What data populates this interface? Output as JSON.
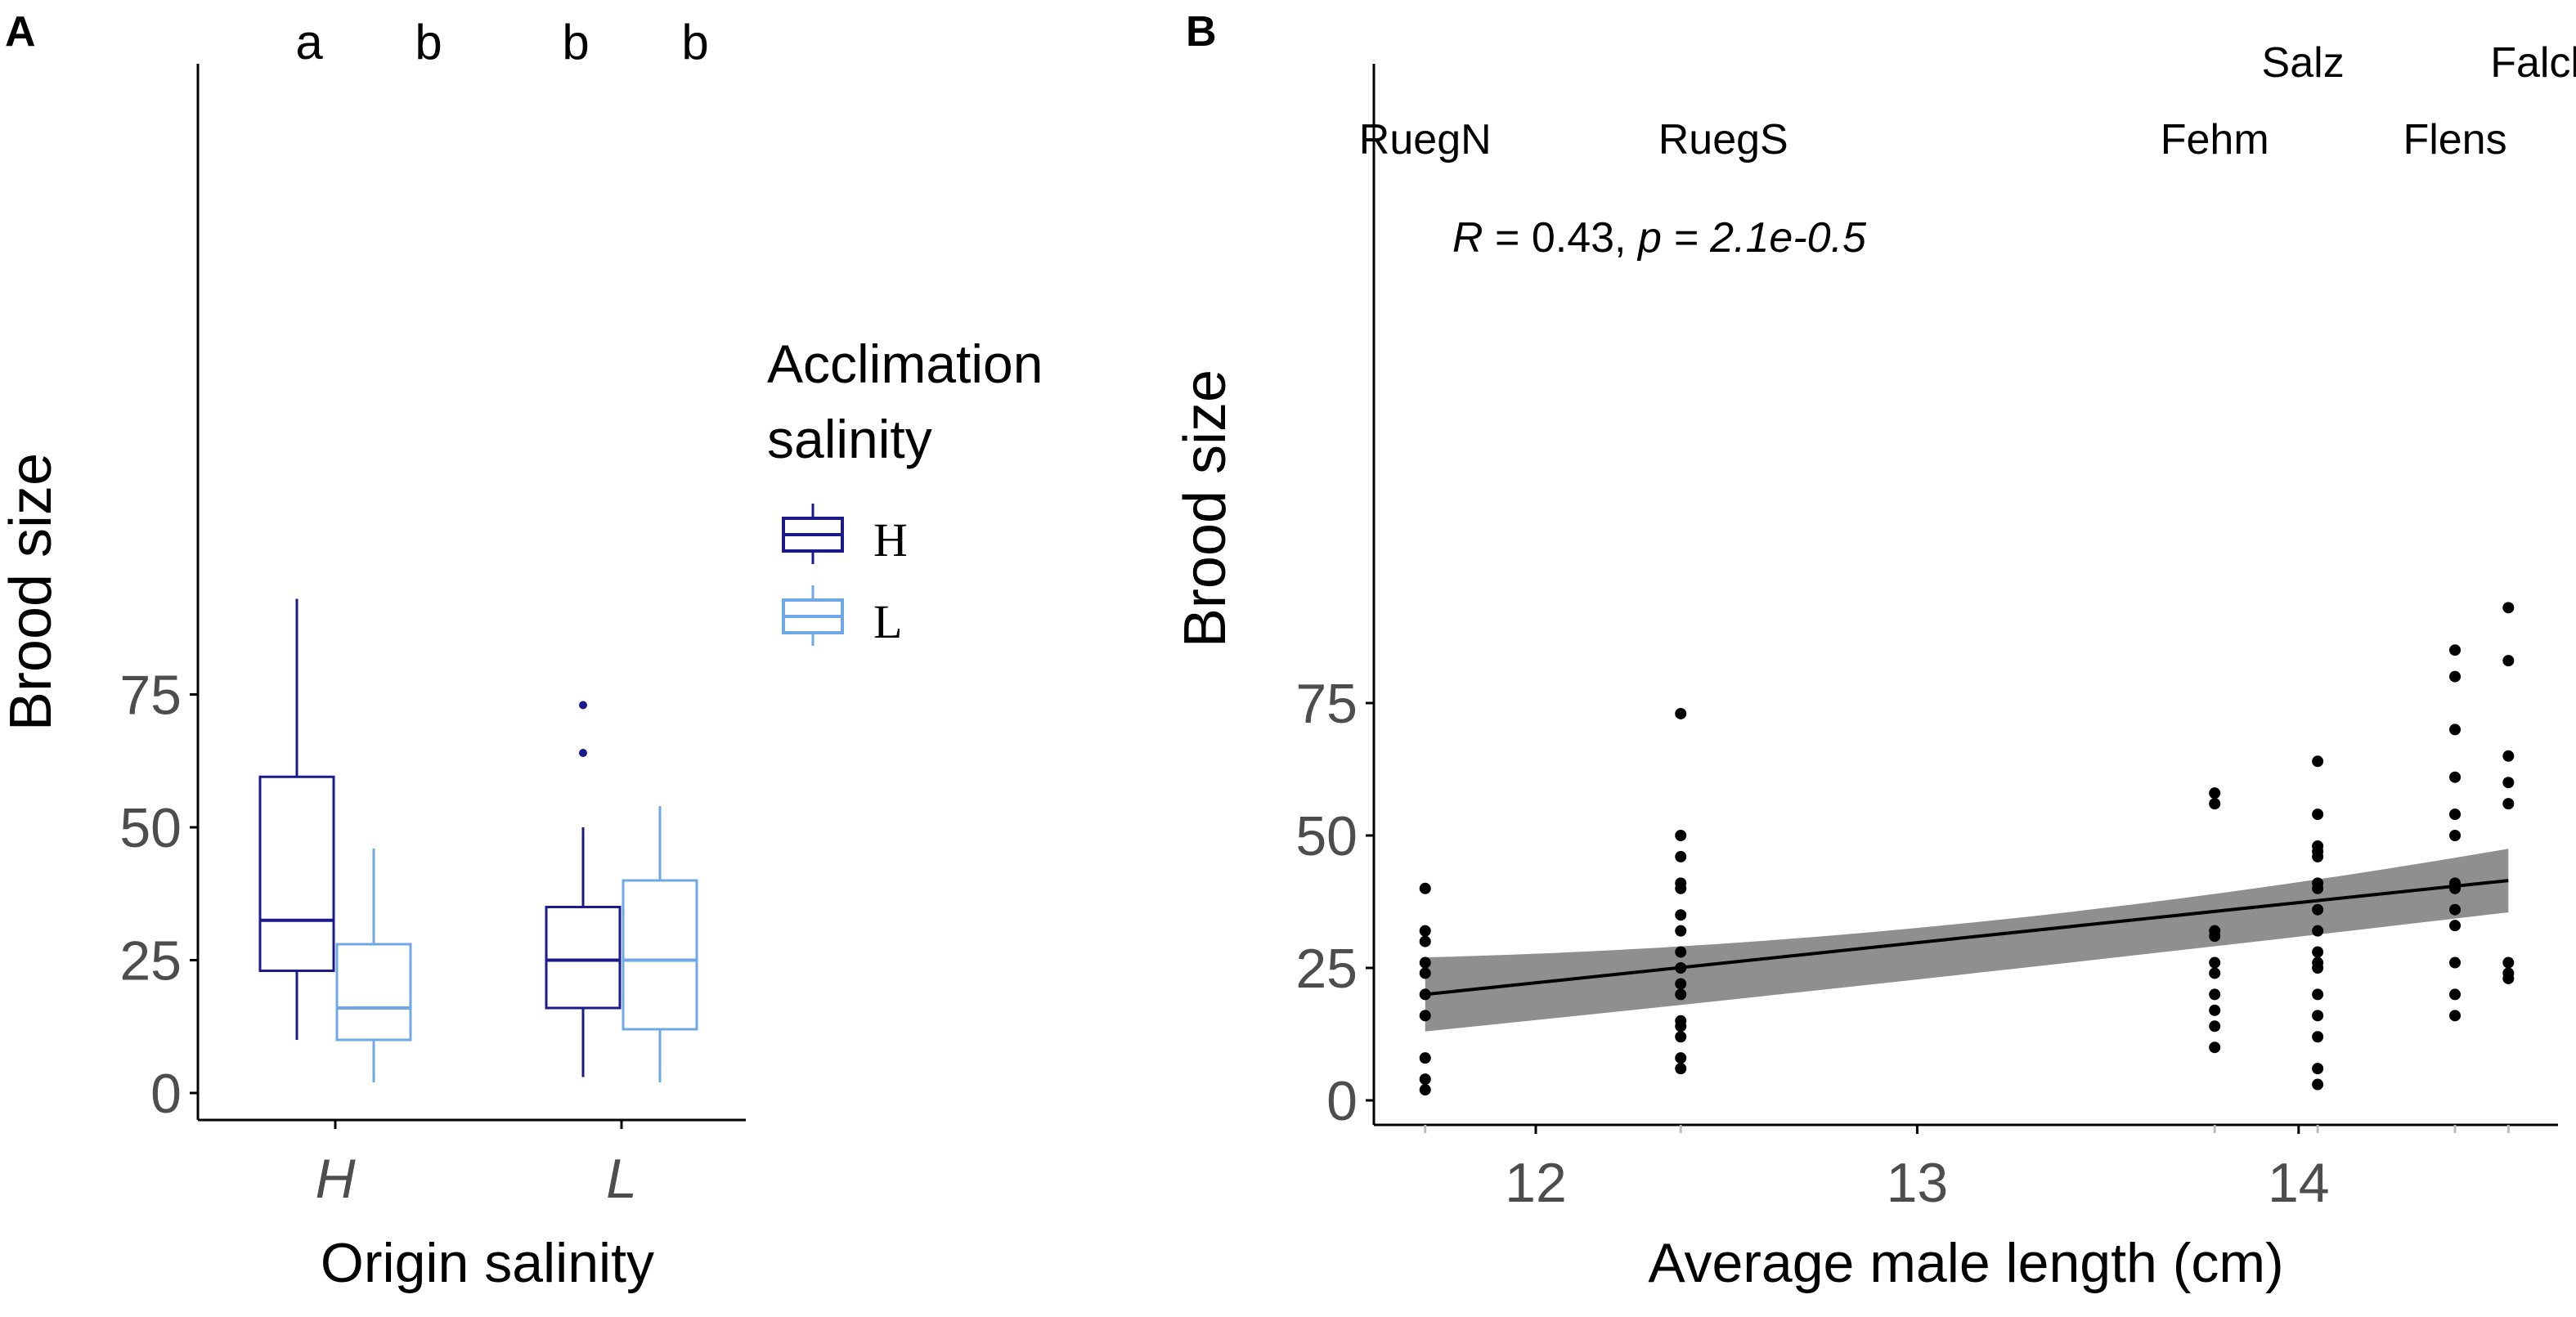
{
  "chart_data": [
    {
      "panel_label": "A",
      "type": "box",
      "xlabel": "Origin salinity",
      "ylabel": "Brood size",
      "categories": [
        "H",
        "L"
      ],
      "yticks": [
        "0",
        "25",
        "50",
        "75"
      ],
      "ylim": [
        -2,
        98
      ],
      "legend": {
        "title_lines": [
          "Acclimation",
          "salinity"
        ],
        "entries": [
          {
            "label": "H",
            "color": "#1a1a8c"
          },
          {
            "label": "L",
            "color": "#6fa8e6"
          }
        ],
        "position": "right"
      },
      "significance_letters": [
        "a",
        "b",
        "b",
        "b"
      ],
      "boxes": [
        {
          "origin": "H",
          "acclimation": "H",
          "min": 10,
          "q1": 23,
          "median": 32.5,
          "q3": 59.5,
          "max": 93,
          "outliers": []
        },
        {
          "origin": "H",
          "acclimation": "L",
          "min": 2,
          "q1": 10,
          "median": 16,
          "q3": 28,
          "max": 46,
          "outliers": []
        },
        {
          "origin": "L",
          "acclimation": "H",
          "min": 3,
          "q1": 16,
          "median": 25,
          "q3": 35,
          "max": 50,
          "outliers": [
            64,
            73
          ]
        },
        {
          "origin": "L",
          "acclimation": "L",
          "min": 2,
          "q1": 12,
          "median": 25,
          "q3": 40,
          "max": 54,
          "outliers": []
        }
      ]
    },
    {
      "panel_label": "B",
      "type": "scatter",
      "xlabel": "Average male length (cm)",
      "ylabel": "Brood size",
      "xticks": [
        "12",
        "13",
        "14"
      ],
      "yticks": [
        "0",
        "25",
        "50",
        "75"
      ],
      "xlim": [
        11.6,
        14.68
      ],
      "ylim": [
        -2,
        98
      ],
      "annotation": {
        "R_label": "R",
        "R_value": " = 0.43,  ",
        "p_label": "p = 2.1e-0.5"
      },
      "regression": {
        "x": [
          11.71,
          14.55
        ],
        "y": [
          20,
          41.5
        ],
        "ci_lower": [
          13,
          35.5
        ],
        "ci_upper": [
          27,
          47.5
        ],
        "mid_x": 13.1,
        "mid_lower": 27,
        "mid_upper": 32
      }
    }
  ],
  "sites": [
    {
      "name": "RuegN",
      "x": 11.71,
      "label_row": "low",
      "values": [
        40,
        32,
        30,
        26,
        24,
        20,
        16,
        8,
        4,
        2
      ]
    },
    {
      "name": "RuegS",
      "x": 12.38,
      "label_row": "low",
      "values": [
        73,
        50,
        46,
        41,
        40,
        35,
        32,
        28,
        25,
        22,
        20,
        15,
        14,
        12,
        8,
        6
      ]
    },
    {
      "name": "Fehm",
      "x": 13.78,
      "label_row": "low",
      "values": [
        58,
        56,
        32,
        31,
        26,
        24,
        20,
        17,
        14,
        10
      ]
    },
    {
      "name": "Salz",
      "x": 14.05,
      "label_row": "high",
      "values": [
        64,
        54,
        48,
        47,
        46,
        41,
        40,
        36,
        32,
        28,
        26,
        25,
        20,
        16,
        12,
        6,
        3
      ]
    },
    {
      "name": "Flens",
      "x": 14.41,
      "label_row": "mid",
      "values": [
        85,
        80,
        70,
        61,
        54,
        50,
        41,
        40,
        36,
        33,
        26,
        20,
        16
      ]
    },
    {
      "name": "Falck",
      "x": 14.55,
      "label_row": "high",
      "values": [
        93,
        83,
        65,
        60,
        56,
        26,
        24,
        23
      ]
    }
  ]
}
